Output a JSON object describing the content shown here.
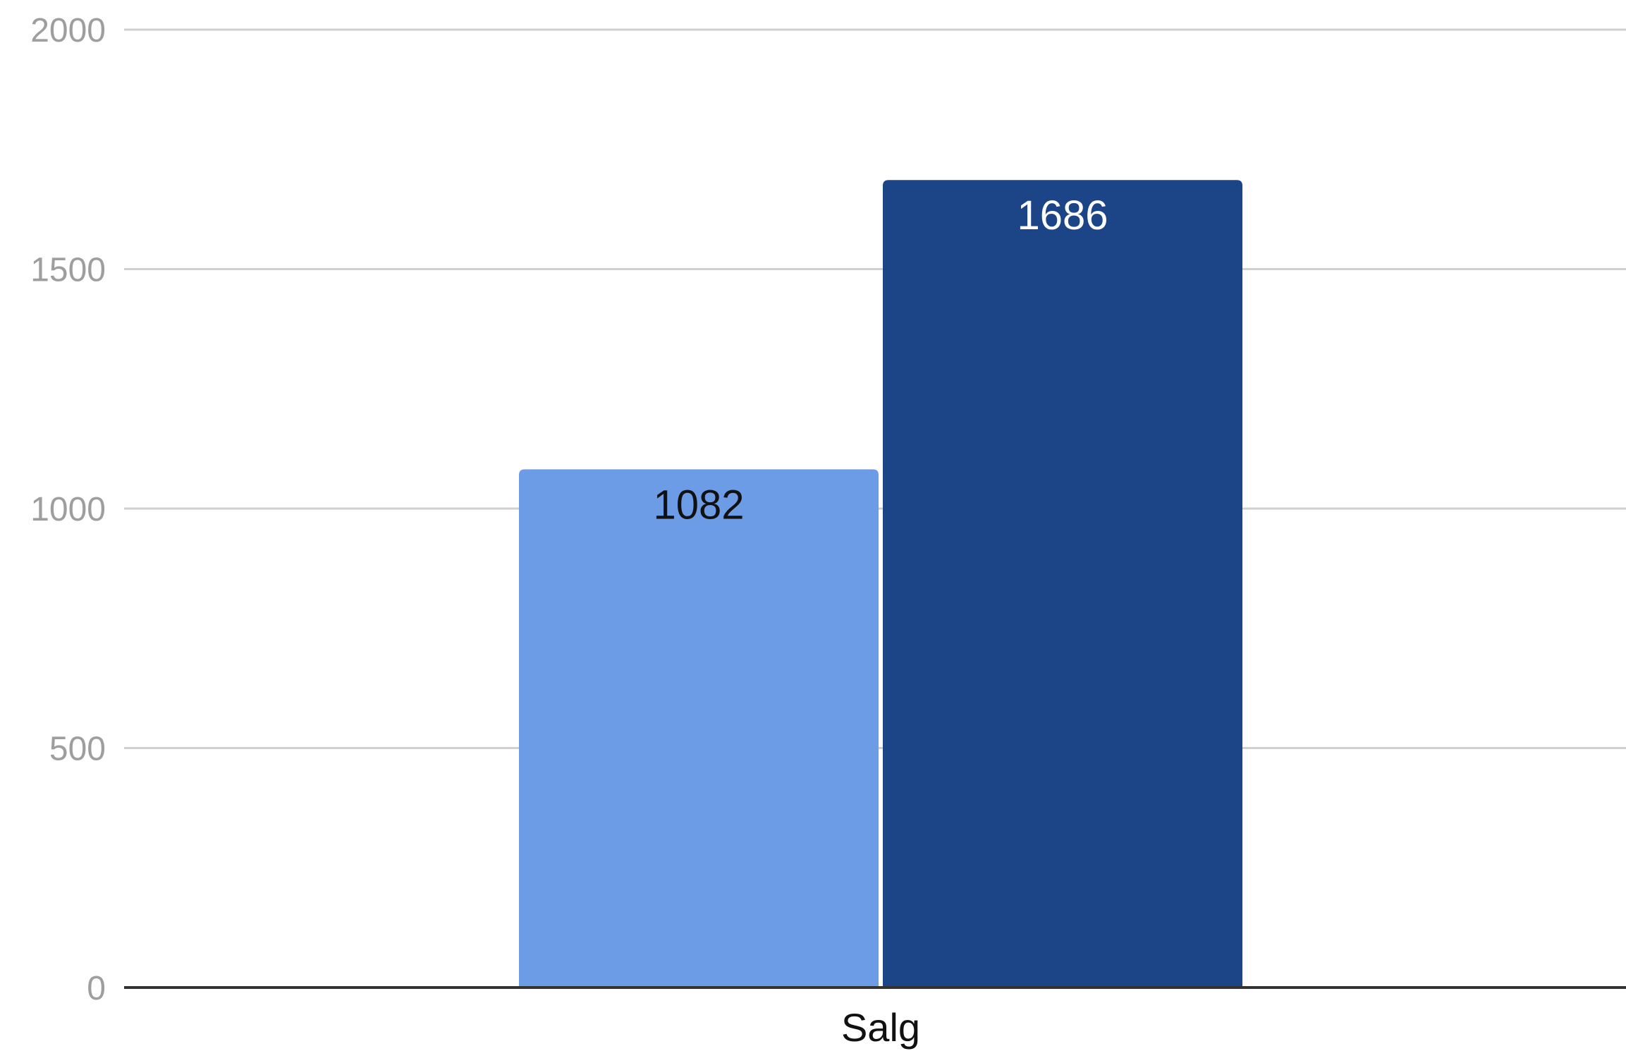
{
  "chart_data": {
    "type": "bar",
    "title": "",
    "xlabel": "",
    "ylabel": "",
    "categories": [
      "Salg"
    ],
    "series": [
      {
        "values": [
          1082
        ],
        "color": "#6d9ce6",
        "label_color": "#111111"
      },
      {
        "values": [
          1686
        ],
        "color": "#1c4587",
        "label_color": "#ffffff"
      }
    ],
    "ylim": [
      0,
      2000
    ],
    "yticks": [
      0,
      500,
      1000,
      1500,
      2000
    ],
    "ytick_labels": [
      "0",
      "500",
      "1000",
      "1500",
      "2000"
    ],
    "data_labels": [
      "1082",
      "1686"
    ],
    "grid": true,
    "legend": "none",
    "gridline_color": "#d0d0d0",
    "baseline_color": "#333333"
  }
}
